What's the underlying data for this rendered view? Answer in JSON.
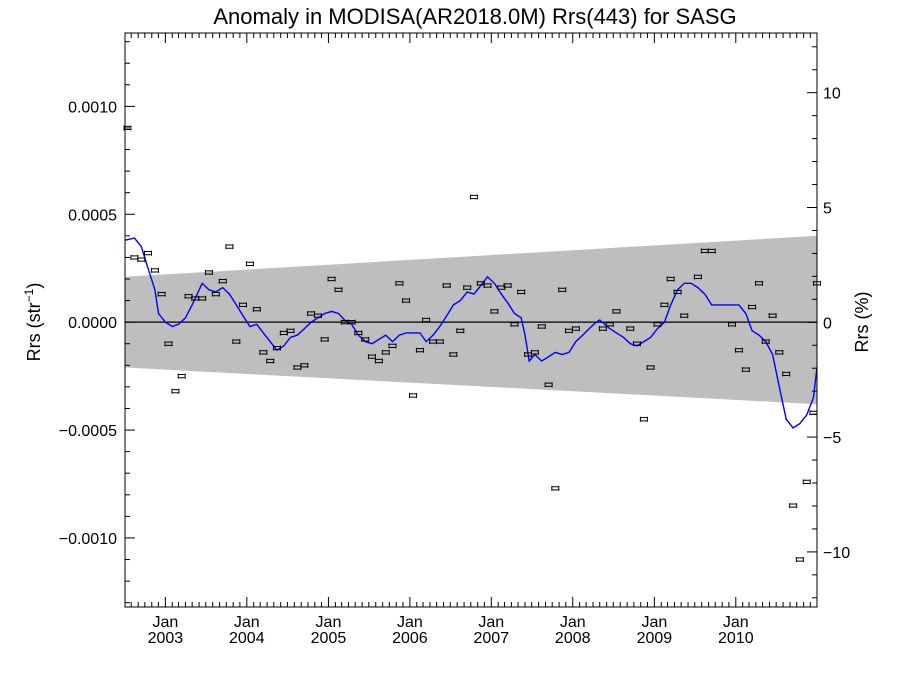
{
  "chart_data": {
    "type": "scatter",
    "title": "Anomaly in MODISA(AR2018.0M) Rrs(443) for SASG",
    "ylabel_left": "Rrs (str⁻¹)",
    "ylabel_right": "Rrs (%)",
    "xlabel": "",
    "x_axis": {
      "type": "date",
      "range": [
        "2002-07-04",
        "2010-12-31"
      ],
      "ticks": [
        {
          "date": "2003-01-01",
          "line1": "Jan",
          "line2": "2003"
        },
        {
          "date": "2004-01-01",
          "line1": "Jan",
          "line2": "2004"
        },
        {
          "date": "2005-01-01",
          "line1": "Jan",
          "line2": "2005"
        },
        {
          "date": "2006-01-01",
          "line1": "Jan",
          "line2": "2006"
        },
        {
          "date": "2007-01-01",
          "line1": "Jan",
          "line2": "2007"
        },
        {
          "date": "2008-01-01",
          "line1": "Jan",
          "line2": "2008"
        },
        {
          "date": "2009-01-01",
          "line1": "Jan",
          "line2": "2009"
        },
        {
          "date": "2010-01-01",
          "line1": "Jan",
          "line2": "2010"
        }
      ]
    },
    "y_left": {
      "range": [
        -0.00132,
        0.00134
      ],
      "ticks": [
        {
          "value": 0.001,
          "label": "0.0010"
        },
        {
          "value": 0.0005,
          "label": "0.0005"
        },
        {
          "value": 0.0,
          "label": "0.0000"
        },
        {
          "value": -0.0005,
          "label": "−0.0005"
        },
        {
          "value": -0.001,
          "label": "−0.0010"
        }
      ]
    },
    "y_right": {
      "range": [
        -12.4,
        12.6
      ],
      "ticks": [
        {
          "value": 10,
          "label": "10"
        },
        {
          "value": 5,
          "label": "5"
        },
        {
          "value": 0,
          "label": "0"
        },
        {
          "value": -5,
          "label": "−5"
        },
        {
          "value": -10,
          "label": "−10"
        }
      ]
    },
    "envelope": {
      "start_date": "2002-07-04",
      "end_date": "2010-12-31",
      "upper": [
        0.00021,
        0.0004
      ],
      "lower": [
        -0.00021,
        -0.00038
      ]
    },
    "zero_line": 0,
    "points": [
      {
        "x": "2002-07-15",
        "y": 0.0009
      },
      {
        "x": "2002-08-15",
        "y": 0.0003
      },
      {
        "x": "2002-09-15",
        "y": 0.00029
      },
      {
        "x": "2002-10-15",
        "y": 0.00032
      },
      {
        "x": "2002-11-15",
        "y": 0.00024
      },
      {
        "x": "2002-12-15",
        "y": 0.00013
      },
      {
        "x": "2003-01-15",
        "y": -0.0001
      },
      {
        "x": "2003-02-15",
        "y": -0.00032
      },
      {
        "x": "2003-03-15",
        "y": -0.00025
      },
      {
        "x": "2003-04-15",
        "y": 0.00012
      },
      {
        "x": "2003-05-15",
        "y": 0.00011
      },
      {
        "x": "2003-06-15",
        "y": 0.00011
      },
      {
        "x": "2003-07-15",
        "y": 0.00023
      },
      {
        "x": "2003-08-15",
        "y": 0.00013
      },
      {
        "x": "2003-09-15",
        "y": 0.00019
      },
      {
        "x": "2003-10-15",
        "y": 0.00035
      },
      {
        "x": "2003-11-15",
        "y": -9e-05
      },
      {
        "x": "2003-12-15",
        "y": 8e-05
      },
      {
        "x": "2004-01-15",
        "y": 0.00027
      },
      {
        "x": "2004-02-15",
        "y": 6e-05
      },
      {
        "x": "2004-03-15",
        "y": -0.00014
      },
      {
        "x": "2004-04-15",
        "y": -0.00018
      },
      {
        "x": "2004-05-15",
        "y": -0.00012
      },
      {
        "x": "2004-06-15",
        "y": -5e-05
      },
      {
        "x": "2004-07-15",
        "y": -4e-05
      },
      {
        "x": "2004-08-15",
        "y": -0.00021
      },
      {
        "x": "2004-09-15",
        "y": -0.0002
      },
      {
        "x": "2004-10-15",
        "y": 4e-05
      },
      {
        "x": "2004-11-15",
        "y": 3e-05
      },
      {
        "x": "2004-12-15",
        "y": -8e-05
      },
      {
        "x": "2005-01-15",
        "y": 0.0002
      },
      {
        "x": "2005-02-15",
        "y": 0.00015
      },
      {
        "x": "2005-03-15",
        "y": 0.0
      },
      {
        "x": "2005-04-15",
        "y": 0.0
      },
      {
        "x": "2005-05-15",
        "y": -5e-05
      },
      {
        "x": "2005-06-15",
        "y": -8e-05
      },
      {
        "x": "2005-07-15",
        "y": -0.00016
      },
      {
        "x": "2005-08-15",
        "y": -0.00018
      },
      {
        "x": "2005-09-15",
        "y": -0.00014
      },
      {
        "x": "2005-10-15",
        "y": -0.00011
      },
      {
        "x": "2005-11-15",
        "y": 0.00018
      },
      {
        "x": "2005-12-15",
        "y": 0.0001
      },
      {
        "x": "2006-01-15",
        "y": -0.00034
      },
      {
        "x": "2006-02-15",
        "y": -0.00013
      },
      {
        "x": "2006-03-15",
        "y": 1e-05
      },
      {
        "x": "2006-04-15",
        "y": -9e-05
      },
      {
        "x": "2006-05-15",
        "y": -9e-05
      },
      {
        "x": "2006-06-15",
        "y": 0.00017
      },
      {
        "x": "2006-07-15",
        "y": -0.00015
      },
      {
        "x": "2006-08-15",
        "y": -4e-05
      },
      {
        "x": "2006-09-15",
        "y": 0.00016
      },
      {
        "x": "2006-10-15",
        "y": 0.00058
      },
      {
        "x": "2006-11-15",
        "y": 0.00018
      },
      {
        "x": "2006-12-15",
        "y": 0.00017
      },
      {
        "x": "2007-01-15",
        "y": 5e-05
      },
      {
        "x": "2007-02-15",
        "y": 0.00016
      },
      {
        "x": "2007-03-15",
        "y": 0.00017
      },
      {
        "x": "2007-04-15",
        "y": -1e-05
      },
      {
        "x": "2007-05-15",
        "y": 0.00014
      },
      {
        "x": "2007-06-15",
        "y": -0.00015
      },
      {
        "x": "2007-07-15",
        "y": -0.00014
      },
      {
        "x": "2007-08-15",
        "y": -2e-05
      },
      {
        "x": "2007-09-15",
        "y": -0.00029
      },
      {
        "x": "2007-10-15",
        "y": -0.00077
      },
      {
        "x": "2007-11-15",
        "y": 0.00015
      },
      {
        "x": "2007-12-15",
        "y": -4e-05
      },
      {
        "x": "2008-01-15",
        "y": -3e-05
      },
      {
        "x": "2008-05-15",
        "y": -3e-05
      },
      {
        "x": "2008-06-15",
        "y": -1e-05
      },
      {
        "x": "2008-07-15",
        "y": 5e-05
      },
      {
        "x": "2008-09-15",
        "y": -3e-05
      },
      {
        "x": "2008-10-15",
        "y": -0.0001
      },
      {
        "x": "2008-11-15",
        "y": -0.00045
      },
      {
        "x": "2008-12-15",
        "y": -0.00021
      },
      {
        "x": "2009-01-15",
        "y": -1e-05
      },
      {
        "x": "2009-02-15",
        "y": 8e-05
      },
      {
        "x": "2009-03-15",
        "y": 0.0002
      },
      {
        "x": "2009-04-15",
        "y": 0.00014
      },
      {
        "x": "2009-05-15",
        "y": 3e-05
      },
      {
        "x": "2009-07-15",
        "y": 0.00021
      },
      {
        "x": "2009-08-15",
        "y": 0.00033
      },
      {
        "x": "2009-09-15",
        "y": 0.00033
      },
      {
        "x": "2009-12-15",
        "y": -1e-05
      },
      {
        "x": "2010-01-15",
        "y": -0.00013
      },
      {
        "x": "2010-02-15",
        "y": -0.00022
      },
      {
        "x": "2010-03-15",
        "y": 7e-05
      },
      {
        "x": "2010-04-15",
        "y": 0.00018
      },
      {
        "x": "2010-05-15",
        "y": -9e-05
      },
      {
        "x": "2010-06-15",
        "y": 3e-05
      },
      {
        "x": "2010-07-15",
        "y": -0.00014
      },
      {
        "x": "2010-08-15",
        "y": -0.00024
      },
      {
        "x": "2010-09-15",
        "y": -0.00085
      },
      {
        "x": "2010-10-15",
        "y": -0.0011
      },
      {
        "x": "2010-11-15",
        "y": -0.00074
      },
      {
        "x": "2010-12-15",
        "y": -0.00042
      },
      {
        "x": "2010-12-31",
        "y": 0.00018
      }
    ],
    "smooth_line": {
      "color": "#0000ff",
      "points": [
        {
          "x": "2002-07-04",
          "y": 0.00038
        },
        {
          "x": "2002-08-15",
          "y": 0.00039
        },
        {
          "x": "2002-09-15",
          "y": 0.00035
        },
        {
          "x": "2002-10-15",
          "y": 0.00025
        },
        {
          "x": "2002-11-15",
          "y": 0.00015
        },
        {
          "x": "2002-12-01",
          "y": 4e-05
        },
        {
          "x": "2003-01-01",
          "y": 0.0
        },
        {
          "x": "2003-02-01",
          "y": -2e-05
        },
        {
          "x": "2003-03-01",
          "y": -1e-05
        },
        {
          "x": "2003-04-01",
          "y": 2e-05
        },
        {
          "x": "2003-05-01",
          "y": 8e-05
        },
        {
          "x": "2003-06-15",
          "y": 0.00018
        },
        {
          "x": "2003-07-15",
          "y": 0.00015
        },
        {
          "x": "2003-08-15",
          "y": 0.00014
        },
        {
          "x": "2003-09-15",
          "y": 0.00016
        },
        {
          "x": "2003-10-15",
          "y": 0.00013
        },
        {
          "x": "2003-11-15",
          "y": 8e-05
        },
        {
          "x": "2003-12-15",
          "y": 3e-05
        },
        {
          "x": "2004-01-15",
          "y": -2e-05
        },
        {
          "x": "2004-02-15",
          "y": -1e-05
        },
        {
          "x": "2004-03-15",
          "y": -5e-05
        },
        {
          "x": "2004-04-15",
          "y": -9e-05
        },
        {
          "x": "2004-05-15",
          "y": -0.00013
        },
        {
          "x": "2004-06-15",
          "y": -0.00011
        },
        {
          "x": "2004-07-15",
          "y": -7e-05
        },
        {
          "x": "2004-08-15",
          "y": -6e-05
        },
        {
          "x": "2004-09-15",
          "y": -3e-05
        },
        {
          "x": "2004-10-15",
          "y": 0.0
        },
        {
          "x": "2004-11-15",
          "y": 2e-05
        },
        {
          "x": "2004-12-15",
          "y": 4e-05
        },
        {
          "x": "2005-01-15",
          "y": 5e-05
        },
        {
          "x": "2005-02-15",
          "y": 4e-05
        },
        {
          "x": "2005-03-15",
          "y": 1e-05
        },
        {
          "x": "2005-04-15",
          "y": -1e-05
        },
        {
          "x": "2005-05-15",
          "y": -6e-05
        },
        {
          "x": "2005-06-15",
          "y": -9e-05
        },
        {
          "x": "2005-07-15",
          "y": -0.0001
        },
        {
          "x": "2005-08-15",
          "y": -8e-05
        },
        {
          "x": "2005-09-15",
          "y": -6e-05
        },
        {
          "x": "2005-10-15",
          "y": -9e-05
        },
        {
          "x": "2005-11-15",
          "y": -6e-05
        },
        {
          "x": "2005-12-15",
          "y": -5e-05
        },
        {
          "x": "2006-01-15",
          "y": -5e-05
        },
        {
          "x": "2006-02-15",
          "y": -5e-05
        },
        {
          "x": "2006-03-15",
          "y": -9e-05
        },
        {
          "x": "2006-04-15",
          "y": -6e-05
        },
        {
          "x": "2006-05-15",
          "y": -2e-05
        },
        {
          "x": "2006-06-15",
          "y": 3e-05
        },
        {
          "x": "2006-07-15",
          "y": 8e-05
        },
        {
          "x": "2006-08-15",
          "y": 0.0001
        },
        {
          "x": "2006-09-15",
          "y": 0.00014
        },
        {
          "x": "2006-10-15",
          "y": 0.00013
        },
        {
          "x": "2006-11-15",
          "y": 0.00017
        },
        {
          "x": "2006-12-15",
          "y": 0.00021
        },
        {
          "x": "2007-01-15",
          "y": 0.00018
        },
        {
          "x": "2007-02-15",
          "y": 0.00013
        },
        {
          "x": "2007-03-15",
          "y": 9e-05
        },
        {
          "x": "2007-04-15",
          "y": 4e-05
        },
        {
          "x": "2007-05-15",
          "y": 2e-05
        },
        {
          "x": "2007-06-01",
          "y": -6e-05
        },
        {
          "x": "2007-06-20",
          "y": -0.00018
        },
        {
          "x": "2007-07-15",
          "y": -0.00015
        },
        {
          "x": "2007-08-15",
          "y": -0.00018
        },
        {
          "x": "2007-09-15",
          "y": -0.00016
        },
        {
          "x": "2007-10-15",
          "y": -0.00014
        },
        {
          "x": "2007-11-15",
          "y": -0.00015
        },
        {
          "x": "2007-12-15",
          "y": -0.00014
        },
        {
          "x": "2008-01-15",
          "y": -9e-05
        },
        {
          "x": "2008-02-15",
          "y": -6e-05
        },
        {
          "x": "2008-03-15",
          "y": -3e-05
        },
        {
          "x": "2008-04-15",
          "y": 0.0
        },
        {
          "x": "2008-05-01",
          "y": 1e-05
        },
        {
          "x": "2008-06-15",
          "y": -3e-05
        },
        {
          "x": "2008-07-15",
          "y": -5e-05
        },
        {
          "x": "2008-08-15",
          "y": -7e-05
        },
        {
          "x": "2008-09-15",
          "y": -0.0001
        },
        {
          "x": "2008-10-15",
          "y": -0.00011
        },
        {
          "x": "2008-11-15",
          "y": -9e-05
        },
        {
          "x": "2008-12-15",
          "y": -7e-05
        },
        {
          "x": "2009-01-15",
          "y": -3e-05
        },
        {
          "x": "2009-02-15",
          "y": 0.0
        },
        {
          "x": "2009-03-15",
          "y": 8e-05
        },
        {
          "x": "2009-04-15",
          "y": 0.00015
        },
        {
          "x": "2009-05-15",
          "y": 0.00018
        },
        {
          "x": "2009-06-15",
          "y": 0.00018
        },
        {
          "x": "2009-07-15",
          "y": 0.00016
        },
        {
          "x": "2009-08-15",
          "y": 0.00013
        },
        {
          "x": "2009-09-15",
          "y": 8e-05
        },
        {
          "x": "2009-11-15",
          "y": 8e-05
        },
        {
          "x": "2010-01-15",
          "y": 8e-05
        },
        {
          "x": "2010-02-15",
          "y": 4e-05
        },
        {
          "x": "2010-03-15",
          "y": -4e-05
        },
        {
          "x": "2010-04-15",
          "y": -6e-05
        },
        {
          "x": "2010-05-15",
          "y": -9e-05
        },
        {
          "x": "2010-06-15",
          "y": -0.00015
        },
        {
          "x": "2010-07-15",
          "y": -0.0003
        },
        {
          "x": "2010-08-15",
          "y": -0.00045
        },
        {
          "x": "2010-09-15",
          "y": -0.00049
        },
        {
          "x": "2010-10-15",
          "y": -0.00047
        },
        {
          "x": "2010-11-15",
          "y": -0.00043
        },
        {
          "x": "2010-12-15",
          "y": -0.00035
        },
        {
          "x": "2010-12-31",
          "y": -0.00021
        }
      ]
    },
    "grid": false,
    "legend": "none"
  }
}
